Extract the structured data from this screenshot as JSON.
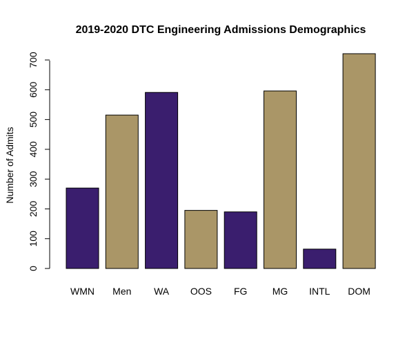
{
  "chart_data": {
    "type": "bar",
    "title": "2019-2020 DTC Engineering Admissions Demographics",
    "xlabel": "",
    "ylabel": "Number of Admits",
    "categories": [
      "WMN",
      "Men",
      "WA",
      "OOS",
      "FG",
      "MG",
      "INTL",
      "DOM"
    ],
    "values": [
      270,
      515,
      591,
      195,
      190,
      596,
      65,
      721
    ],
    "bar_colors": [
      "#3a1e6e",
      "#aa9667",
      "#3a1e6e",
      "#aa9667",
      "#3a1e6e",
      "#aa9667",
      "#3a1e6e",
      "#aa9667"
    ],
    "ylim": [
      0,
      721
    ],
    "yticks": [
      0,
      100,
      200,
      300,
      400,
      500,
      600,
      700
    ],
    "grid": false,
    "legend": "none"
  }
}
